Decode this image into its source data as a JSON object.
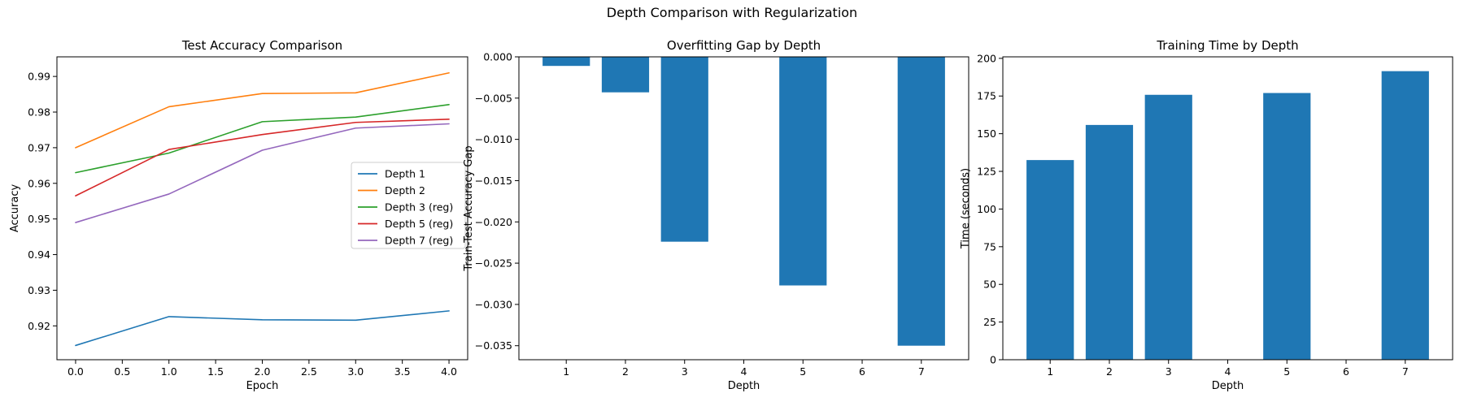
{
  "suptitle": "Depth Comparison with Regularization",
  "chart_data": [
    {
      "type": "line",
      "title": "Test Accuracy Comparison",
      "xlabel": "Epoch",
      "ylabel": "Accuracy",
      "xlim": [
        -0.2,
        4.2
      ],
      "ylim": [
        0.9105,
        0.9955
      ],
      "xticks": [
        0.0,
        0.5,
        1.0,
        1.5,
        2.0,
        2.5,
        3.0,
        3.5,
        4.0
      ],
      "xtick_labels": [
        "0.0",
        "0.5",
        "1.0",
        "1.5",
        "2.0",
        "2.5",
        "3.0",
        "3.5",
        "4.0"
      ],
      "yticks": [
        0.92,
        0.93,
        0.94,
        0.95,
        0.96,
        0.97,
        0.98,
        0.99
      ],
      "ytick_labels": [
        "0.92",
        "0.93",
        "0.94",
        "0.95",
        "0.96",
        "0.97",
        "0.98",
        "0.99"
      ],
      "legend_position": "center-right",
      "x": [
        0,
        1,
        2,
        3,
        4
      ],
      "series": [
        {
          "name": "Depth 1",
          "color": "#1f77b4",
          "values": [
            0.9145,
            0.9226,
            0.9217,
            0.9216,
            0.9242
          ]
        },
        {
          "name": "Depth 2",
          "color": "#ff7f0e",
          "values": [
            0.97,
            0.9815,
            0.9852,
            0.9854,
            0.991
          ]
        },
        {
          "name": "Depth 3 (reg)",
          "color": "#2ca02c",
          "values": [
            0.963,
            0.9685,
            0.9773,
            0.9786,
            0.9821
          ]
        },
        {
          "name": "Depth 5 (reg)",
          "color": "#d62728",
          "values": [
            0.9565,
            0.9695,
            0.9737,
            0.9771,
            0.978
          ]
        },
        {
          "name": "Depth 7 (reg)",
          "color": "#9467bd",
          "values": [
            0.949,
            0.957,
            0.9693,
            0.9755,
            0.9767
          ]
        }
      ]
    },
    {
      "type": "bar",
      "title": "Overfitting Gap by Depth",
      "xlabel": "Depth",
      "ylabel": "Train-Test Accuracy Gap",
      "xlim": [
        0.2,
        7.8
      ],
      "ylim": [
        -0.0367,
        0.0
      ],
      "xticks": [
        1,
        2,
        3,
        4,
        5,
        6,
        7
      ],
      "xtick_labels": [
        "1",
        "2",
        "3",
        "4",
        "5",
        "6",
        "7"
      ],
      "yticks": [
        0.0,
        -0.005,
        -0.01,
        -0.015,
        -0.02,
        -0.025,
        -0.03,
        -0.035
      ],
      "ytick_labels": [
        "0.000",
        "−0.005",
        "−0.010",
        "−0.015",
        "−0.020",
        "−0.025",
        "−0.030",
        "−0.035"
      ],
      "bar_color": "#1f77b4",
      "bar_width": 0.8,
      "categories": [
        1,
        2,
        3,
        5,
        7
      ],
      "values": [
        -0.0011,
        -0.0043,
        -0.0224,
        -0.0277,
        -0.035
      ]
    },
    {
      "type": "bar",
      "title": "Training Time by Depth",
      "xlabel": "Depth",
      "ylabel": "Time (seconds)",
      "xlim": [
        0.2,
        7.8
      ],
      "ylim": [
        0,
        201
      ],
      "xticks": [
        1,
        2,
        3,
        4,
        5,
        6,
        7
      ],
      "xtick_labels": [
        "1",
        "2",
        "3",
        "4",
        "5",
        "6",
        "7"
      ],
      "yticks": [
        0,
        25,
        50,
        75,
        100,
        125,
        150,
        175,
        200
      ],
      "ytick_labels": [
        "0",
        "25",
        "50",
        "75",
        "100",
        "125",
        "150",
        "175",
        "200"
      ],
      "bar_color": "#1f77b4",
      "bar_width": 0.8,
      "categories": [
        1,
        2,
        3,
        5,
        7
      ],
      "values": [
        132.5,
        155.8,
        175.8,
        177.0,
        191.5
      ]
    }
  ]
}
